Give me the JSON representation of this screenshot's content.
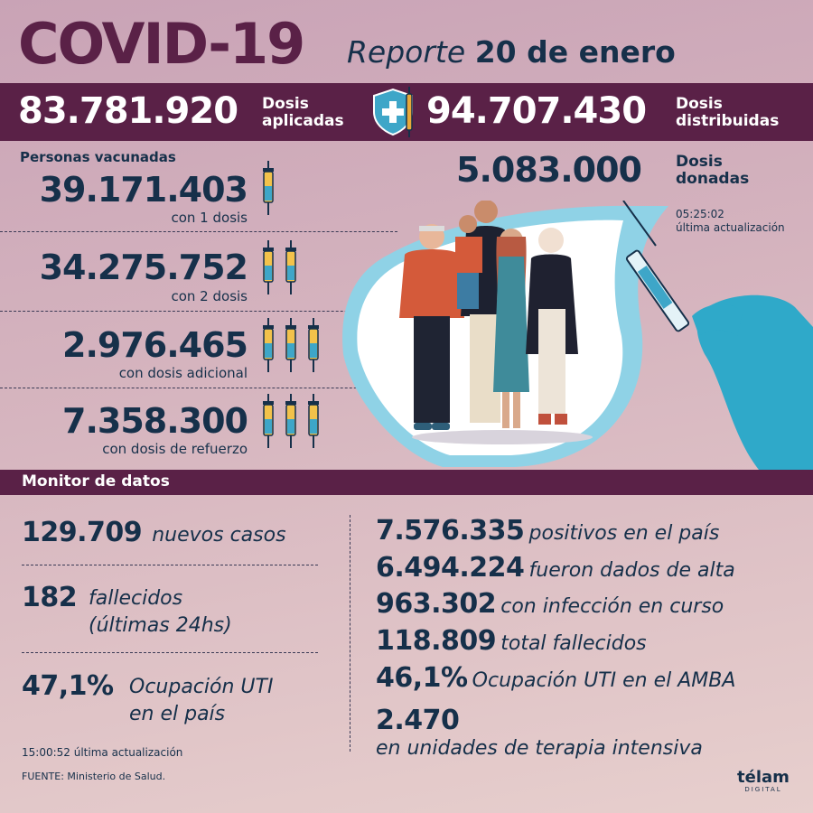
{
  "header": {
    "title": "COVID-19",
    "report_word": "Reporte",
    "report_date": "20 de enero"
  },
  "band": {
    "applied_value": "83.781.920",
    "applied_label_1": "Dosis",
    "applied_label_2": "aplicadas",
    "distributed_value": "94.707.430",
    "distributed_label_1": "Dosis",
    "distributed_label_2": "distribuidas"
  },
  "vaccinated": {
    "title": "Personas vacunadas",
    "rows": [
      {
        "value": "39.171.403",
        "label": "con 1 dosis",
        "syringes": 1
      },
      {
        "value": "34.275.752",
        "label": "con 2 dosis",
        "syringes": 2
      },
      {
        "value": "2.976.465",
        "label": "con dosis adicional",
        "syringes": 3
      },
      {
        "value": "7.358.300",
        "label": "con dosis de refuerzo",
        "syringes": 3
      }
    ]
  },
  "donated": {
    "value": "5.083.000",
    "label_1": "Dosis",
    "label_2": "donadas",
    "update_time": "05:25:02",
    "update_label": "última actualización"
  },
  "monitor": {
    "title": "Monitor de datos",
    "left": {
      "new_cases_value": "129.709",
      "new_cases_label": "nuevos casos",
      "deaths_value": "182",
      "deaths_label_1": "fallecidos",
      "deaths_label_2": "(últimas 24hs)",
      "icu_value": "47,1%",
      "icu_label_1": "Ocupación UTI",
      "icu_label_2": "en el país",
      "update_time": "15:00:52",
      "update_label": "última actualización",
      "source": "FUENTE: Ministerio de Salud."
    },
    "right": [
      {
        "value": "7.576.335",
        "label": "positivos en el país"
      },
      {
        "value": "6.494.224",
        "label": "fueron dados de alta"
      },
      {
        "value": "963.302",
        "label": "con infección en curso"
      },
      {
        "value": "118.809",
        "label": "total fallecidos"
      },
      {
        "value": "46,1%",
        "label": "Ocupación UTI en el AMBA"
      }
    ],
    "icu_units_value": "2.470",
    "icu_units_label": "en unidades de terapia intensiva"
  },
  "brand": {
    "logo": "télam",
    "sub": "DIGITAL"
  },
  "colors": {
    "purple": "#5a2147",
    "navy": "#16304a",
    "glove": "#2fa9c9"
  }
}
